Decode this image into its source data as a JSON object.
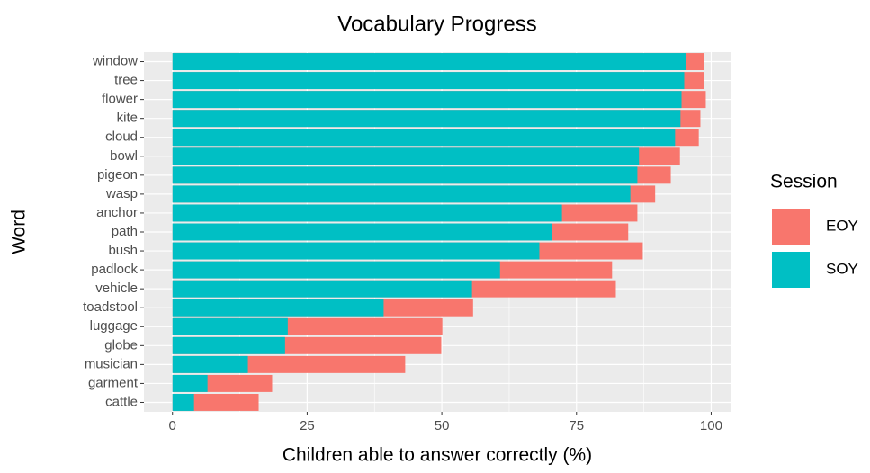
{
  "chart_data": {
    "type": "bar",
    "orientation": "horizontal",
    "overlap": true,
    "title": "Vocabulary Progress",
    "x_label": "Children able to answer correctly (%)",
    "y_label": "Word",
    "legend_title": "Session",
    "legend_position": "right",
    "categories": [
      "window",
      "tree",
      "flower",
      "kite",
      "cloud",
      "bowl",
      "pigeon",
      "wasp",
      "anchor",
      "path",
      "bush",
      "padlock",
      "vehicle",
      "toadstool",
      "luggage",
      "globe",
      "musician",
      "garment",
      "cattle"
    ],
    "series": [
      {
        "name": "EOY",
        "color": "#F8766D",
        "values": [
          98.7,
          98.7,
          99.0,
          98.0,
          97.7,
          94.2,
          92.5,
          89.6,
          86.3,
          84.6,
          87.3,
          81.6,
          82.3,
          55.8,
          50.1,
          49.9,
          43.2,
          18.5,
          16.0
        ]
      },
      {
        "name": "SOY",
        "color": "#00BFC4",
        "values": [
          95.3,
          95.0,
          94.5,
          94.3,
          93.3,
          86.6,
          86.3,
          85.0,
          72.3,
          70.5,
          68.1,
          60.8,
          55.6,
          39.2,
          21.4,
          20.9,
          14.0,
          6.5,
          4.0
        ]
      }
    ],
    "xlim": [
      -5.3,
      103.6
    ],
    "xticks": [
      0,
      25,
      50,
      75,
      100
    ],
    "grid": true
  }
}
